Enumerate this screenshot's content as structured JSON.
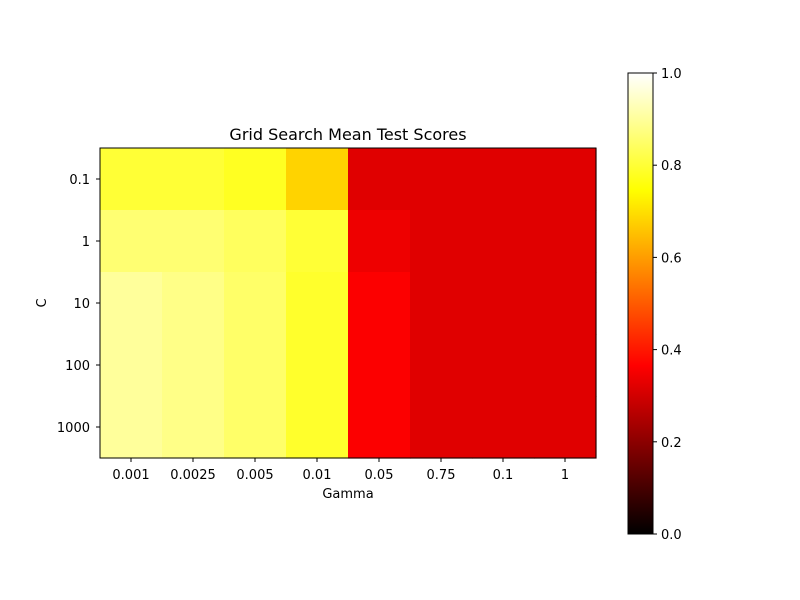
{
  "chart_data": {
    "type": "heatmap",
    "title": "Grid Search Mean Test Scores",
    "xlabel": "Gamma",
    "ylabel": "C",
    "x_categories": [
      "0.001",
      "0.0025",
      "0.005",
      "0.01",
      "0.05",
      "0.75",
      "0.1",
      "1"
    ],
    "y_categories": [
      "0.1",
      "1",
      "10",
      "100",
      "1000"
    ],
    "values": [
      [
        0.8,
        0.8,
        0.78,
        0.68,
        0.32,
        0.32,
        0.32,
        0.32
      ],
      [
        0.86,
        0.86,
        0.84,
        0.8,
        0.34,
        0.32,
        0.32,
        0.32
      ],
      [
        0.9,
        0.88,
        0.85,
        0.79,
        0.36,
        0.32,
        0.32,
        0.32
      ],
      [
        0.9,
        0.88,
        0.85,
        0.79,
        0.36,
        0.32,
        0.32,
        0.32
      ],
      [
        0.9,
        0.88,
        0.85,
        0.79,
        0.36,
        0.32,
        0.32,
        0.32
      ]
    ],
    "colormap": "hot",
    "colorbar": {
      "range": [
        0.0,
        1.0
      ],
      "ticks": [
        "0.0",
        "0.2",
        "0.4",
        "0.6",
        "0.8",
        "1.0"
      ]
    }
  }
}
